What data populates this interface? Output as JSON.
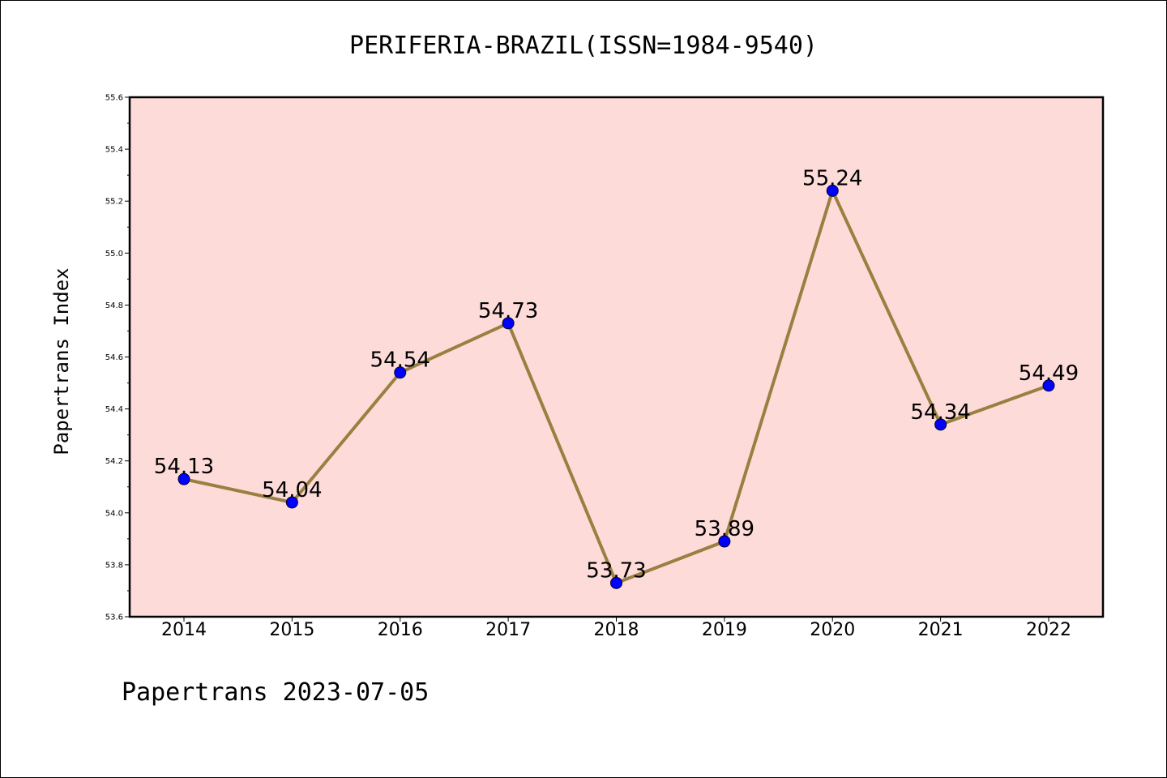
{
  "chart_data": {
    "type": "line",
    "title": "PERIFERIA-BRAZIL(ISSN=1984-9540)",
    "xlabel": "",
    "ylabel": "Papertrans Index",
    "footer": "Papertrans 2023-07-05",
    "x": [
      "2014",
      "2015",
      "2016",
      "2017",
      "2018",
      "2019",
      "2020",
      "2021",
      "2022"
    ],
    "series": [
      {
        "values": [
          54.13,
          54.04,
          54.54,
          54.73,
          53.73,
          53.89,
          55.24,
          54.34,
          54.49
        ],
        "labels": [
          "54.13",
          "54.04",
          "54.54",
          "54.73",
          "53.73",
          "53.89",
          "55.24",
          "54.34",
          "54.49"
        ]
      }
    ],
    "ylim": [
      53.6,
      55.6
    ],
    "yticks": [
      "53.6",
      "53.8",
      "54.0",
      "54.2",
      "54.4",
      "54.6",
      "54.8",
      "55.0",
      "55.2",
      "55.4",
      "55.6"
    ],
    "grid": false,
    "colors": {
      "plot_background": "#fddbd9",
      "line": "#9a8040",
      "marker": "#0000ff"
    }
  }
}
